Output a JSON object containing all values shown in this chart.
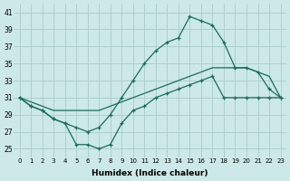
{
  "xlabel": "Humidex (Indice chaleur)",
  "background_color": "#cce8e8",
  "grid_color": "#aed0d0",
  "line_color": "#1a6b5e",
  "xlim": [
    -0.5,
    23.5
  ],
  "ylim": [
    24,
    42
  ],
  "yticks": [
    25,
    27,
    29,
    31,
    33,
    35,
    37,
    39,
    41
  ],
  "xticks": [
    0,
    1,
    2,
    3,
    4,
    5,
    6,
    7,
    8,
    9,
    10,
    11,
    12,
    13,
    14,
    15,
    16,
    17,
    18,
    19,
    20,
    21,
    22,
    23
  ],
  "line_top_x": [
    0,
    1,
    2,
    3,
    4,
    5,
    6,
    7,
    8,
    9,
    10,
    11,
    12,
    13,
    14,
    15,
    16,
    17,
    18,
    19,
    20,
    21,
    22,
    23
  ],
  "line_top_y": [
    31,
    30,
    29.5,
    28.5,
    28,
    27.5,
    27,
    27.5,
    29,
    31,
    33,
    35,
    36.5,
    37.5,
    38,
    40.5,
    40,
    39.5,
    37.5,
    34.5,
    34.5,
    34,
    32,
    31
  ],
  "line_mid_x": [
    0,
    1,
    2,
    3,
    4,
    5,
    6,
    7,
    8,
    9,
    10,
    11,
    12,
    13,
    14,
    15,
    16,
    17,
    18,
    19,
    20,
    21,
    22,
    23
  ],
  "line_mid_y": [
    31,
    30.5,
    30,
    29.5,
    29.5,
    29.5,
    29.5,
    29.5,
    30,
    30.5,
    31,
    31.5,
    32,
    32.5,
    33,
    33.5,
    34,
    34.5,
    34.5,
    34.5,
    34.5,
    34,
    33.5,
    31
  ],
  "line_bot_x": [
    0,
    1,
    2,
    3,
    4,
    5,
    6,
    7,
    8,
    9,
    10,
    11,
    12,
    13,
    14,
    15,
    16,
    17,
    18,
    19,
    20,
    21,
    22,
    23
  ],
  "line_bot_y": [
    31,
    30,
    29.5,
    28.5,
    28,
    25.5,
    25.5,
    25,
    25.5,
    28,
    29.5,
    30,
    31,
    31.5,
    32,
    32.5,
    33,
    33.5,
    31,
    31,
    31,
    31,
    31,
    31
  ]
}
